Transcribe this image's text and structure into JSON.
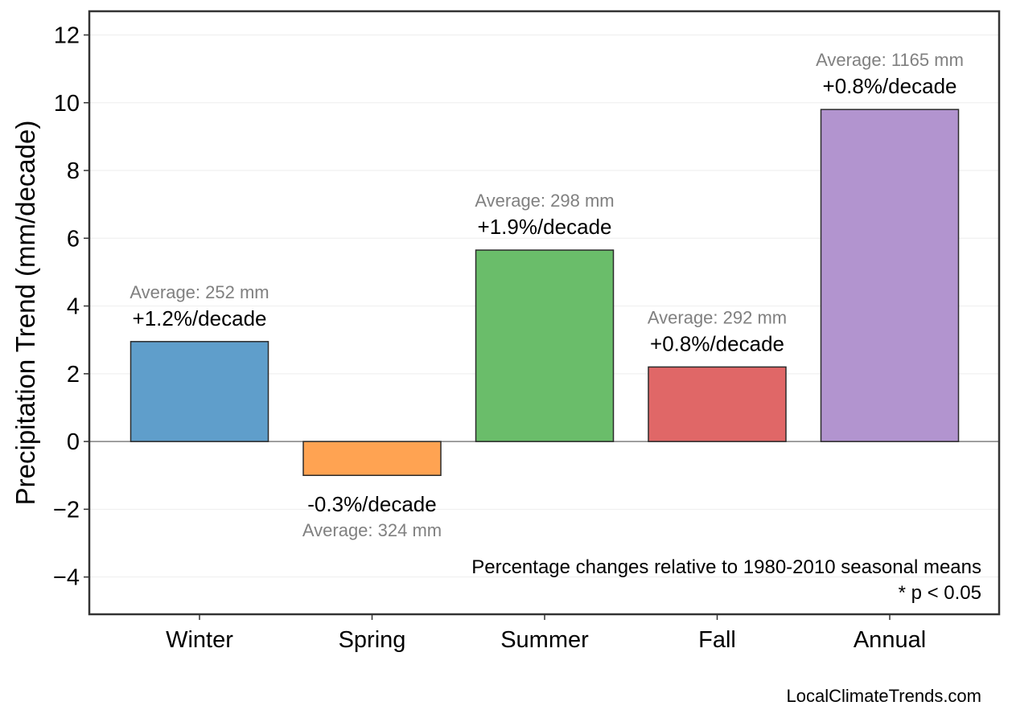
{
  "chart_data": {
    "type": "bar",
    "title": "",
    "xlabel": "",
    "ylabel": "Precipitation Trend (mm/decade)",
    "ylim": [
      -5.1,
      12.7
    ],
    "yticks": [
      -4,
      -2,
      0,
      2,
      4,
      6,
      8,
      10,
      12
    ],
    "ytick_labels": [
      "−4",
      "−2",
      "0",
      "2",
      "4",
      "6",
      "8",
      "10",
      "12"
    ],
    "grid": "horizontal, faint",
    "categories": [
      "Winter",
      "Spring",
      "Summer",
      "Fall",
      "Annual"
    ],
    "values": [
      2.95,
      -1.0,
      5.65,
      2.2,
      9.8
    ],
    "percent_labels": [
      "+1.2%/decade",
      "-0.3%/decade",
      "+1.9%/decade",
      "+0.8%/decade",
      "+0.8%/decade"
    ],
    "average_labels": [
      "Average: 252 mm",
      "Average: 324 mm",
      "Average: 298 mm",
      "Average: 292 mm",
      "Average: 1165 mm"
    ],
    "colors": [
      "#5f9ecb",
      "#ffa352",
      "#6abd6a",
      "#e06767",
      "#b294cf"
    ],
    "notes": [
      "Percentage changes relative to 1980-2010 seasonal means",
      "* p < 0.05"
    ],
    "credit": "LocalClimateTrends.com"
  }
}
